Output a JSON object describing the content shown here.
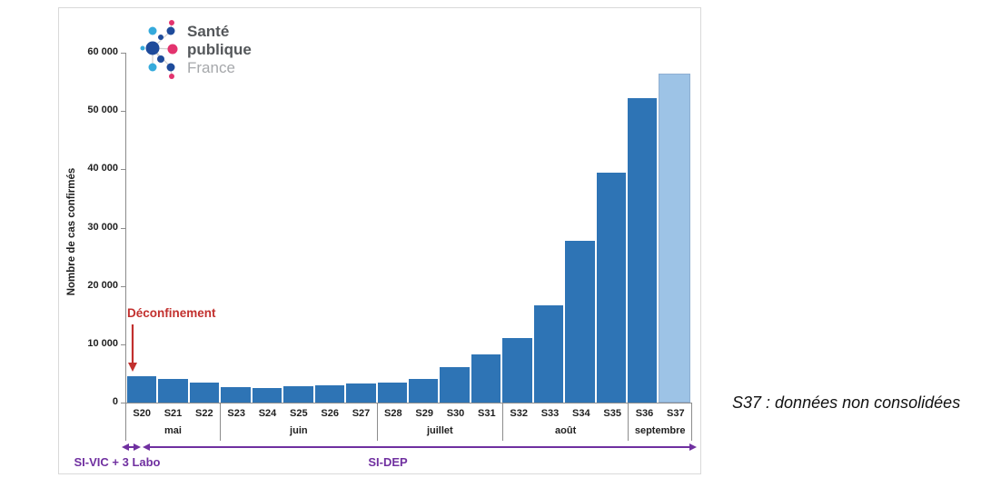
{
  "logo": {
    "line1": "Santé",
    "line2": "publique",
    "line3": "France"
  },
  "chart_data": {
    "type": "bar",
    "title": "",
    "ylabel": "Nombre de cas confirmés",
    "xlabel": "",
    "ylim": [
      0,
      60000
    ],
    "grid": false,
    "yticks": [
      "60 000",
      "50 000",
      "40 000",
      "30 000",
      "20 000",
      "10 000",
      "0"
    ],
    "categories": [
      "S20",
      "S21",
      "S22",
      "S23",
      "S24",
      "S25",
      "S26",
      "S27",
      "S28",
      "S29",
      "S30",
      "S31",
      "S32",
      "S33",
      "S34",
      "S35",
      "S36",
      "S37"
    ],
    "values": [
      4500,
      4000,
      3500,
      2600,
      2500,
      2800,
      3000,
      3300,
      3500,
      4100,
      6100,
      8300,
      11100,
      16700,
      27700,
      39400,
      52200,
      56400
    ],
    "month_groups": [
      {
        "label": "mai",
        "count": 3
      },
      {
        "label": "juin",
        "count": 5
      },
      {
        "label": "juillet",
        "count": 4
      },
      {
        "label": "août",
        "count": 4
      },
      {
        "label": "septembre",
        "count": 2
      }
    ],
    "last_bar_light": true,
    "colors": {
      "bar": "#2e74b5",
      "bar_light": "#9dc3e6",
      "axis": "#8c8c8c",
      "annotation_red": "#c2302e",
      "annotation_purple": "#7030a0"
    }
  },
  "annotations": {
    "deconfinement": "Déconfinement",
    "source_left": "SI-VIC + 3 Labo",
    "source_right": "SI-DEP",
    "note": "S37 : données non consolidées"
  }
}
